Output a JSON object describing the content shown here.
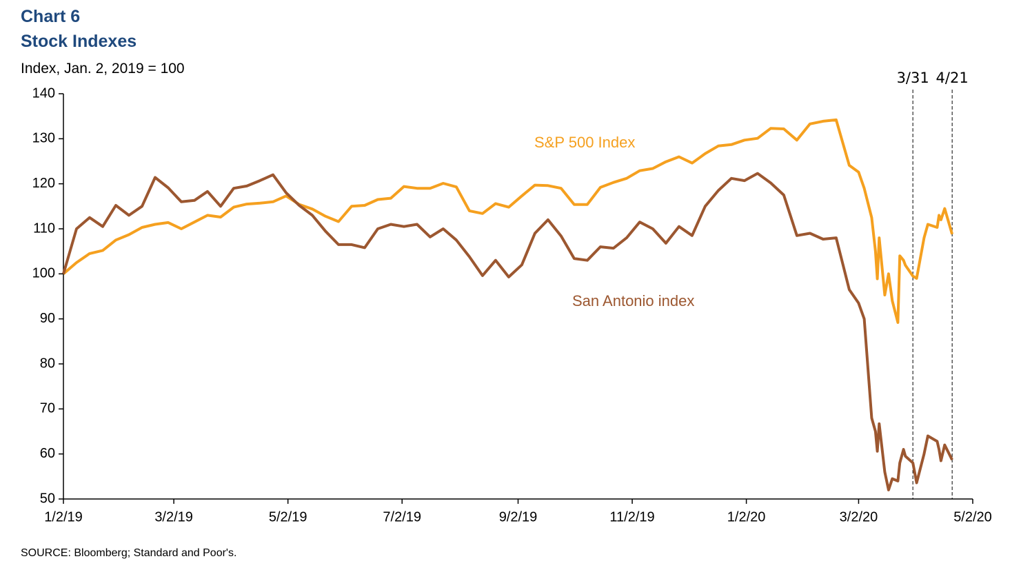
{
  "chart_data": {
    "type": "line",
    "title": "Chart 6",
    "subtitle": "Stock Indexes",
    "y_axis_label": "Index, Jan. 2, 2019 = 100",
    "source": "SOURCE: Bloomberg; Standard and Poor's.",
    "x": [
      "2019-01-02",
      "2019-01-09",
      "2019-01-16",
      "2019-01-23",
      "2019-01-30",
      "2019-02-06",
      "2019-02-13",
      "2019-02-20",
      "2019-02-27",
      "2019-03-06",
      "2019-03-13",
      "2019-03-20",
      "2019-03-27",
      "2019-04-03",
      "2019-04-10",
      "2019-04-17",
      "2019-04-24",
      "2019-05-01",
      "2019-05-08",
      "2019-05-15",
      "2019-05-22",
      "2019-05-29",
      "2019-06-05",
      "2019-06-12",
      "2019-06-19",
      "2019-06-26",
      "2019-07-03",
      "2019-07-10",
      "2019-07-17",
      "2019-07-24",
      "2019-07-31",
      "2019-08-07",
      "2019-08-14",
      "2019-08-21",
      "2019-08-28",
      "2019-09-04",
      "2019-09-11",
      "2019-09-18",
      "2019-09-25",
      "2019-10-02",
      "2019-10-09",
      "2019-10-16",
      "2019-10-23",
      "2019-10-30",
      "2019-11-06",
      "2019-11-13",
      "2019-11-20",
      "2019-11-27",
      "2019-12-04",
      "2019-12-11",
      "2019-12-18",
      "2019-12-25",
      "2020-01-01",
      "2020-01-08",
      "2020-01-15",
      "2020-01-22",
      "2020-01-29",
      "2020-02-05",
      "2020-02-12",
      "2020-02-19",
      "2020-02-26",
      "2020-03-02",
      "2020-03-05",
      "2020-03-09",
      "2020-03-11",
      "2020-03-12",
      "2020-03-13",
      "2020-03-16",
      "2020-03-18",
      "2020-03-20",
      "2020-03-23",
      "2020-03-24",
      "2020-03-26",
      "2020-03-27",
      "2020-03-31",
      "2020-04-02",
      "2020-04-06",
      "2020-04-08",
      "2020-04-13",
      "2020-04-14",
      "2020-04-15",
      "2020-04-17",
      "2020-04-21"
    ],
    "series": [
      {
        "name": "S&P 500 Index",
        "color": "#f5a01f",
        "values": [
          100,
          102.5,
          104.5,
          105.2,
          107.5,
          108.7,
          110.3,
          111,
          111.4,
          110,
          111.5,
          113,
          112.6,
          114.8,
          115.5,
          115.7,
          116,
          117.3,
          115.4,
          114.4,
          112.8,
          111.6,
          115,
          115.2,
          116.5,
          116.8,
          119.4,
          119,
          119,
          120.1,
          119.3,
          114,
          113.4,
          115.6,
          114.8,
          117.3,
          119.7,
          119.6,
          119,
          115.4,
          115.4,
          119.2,
          120.3,
          121.2,
          122.9,
          123.4,
          124.9,
          126,
          124.6,
          126.7,
          128.4,
          128.7,
          129.7,
          130.1,
          132.3,
          132.2,
          129.7,
          133.3,
          133.9,
          134.2,
          124.1,
          122.6,
          119,
          112.5,
          105,
          98.9,
          108,
          95.3,
          100,
          94,
          89.2,
          104,
          103,
          101.9,
          99.5,
          99,
          108,
          111,
          110.3,
          113,
          112,
          114.5,
          108.8
        ]
      },
      {
        "name": "San Antonio index",
        "color": "#9c5730",
        "values": [
          100,
          110,
          112.5,
          110.5,
          115.2,
          113,
          115,
          121.4,
          119.1,
          116,
          116.3,
          118.3,
          115,
          119,
          119.5,
          120.7,
          122,
          118,
          115.2,
          113,
          109.5,
          106.5,
          106.5,
          105.8,
          110,
          111,
          110.5,
          111,
          108.2,
          110,
          107.5,
          103.8,
          99.6,
          103,
          99.3,
          102,
          109,
          112,
          108.4,
          103.4,
          103,
          106,
          105.7,
          108,
          111.5,
          110,
          106.8,
          110.5,
          108.5,
          115,
          118.5,
          121.2,
          120.7,
          122.3,
          120.2,
          117.5,
          108.5,
          109,
          107.7,
          108,
          96.5,
          93.5,
          90,
          68,
          65,
          60.6,
          66.7,
          56,
          52,
          54.5,
          54,
          58,
          61,
          59.5,
          58,
          53.6,
          60,
          64,
          62.8,
          61,
          58.5,
          62,
          58.7
        ]
      }
    ],
    "xlim": [
      "2019-01-02",
      "2020-05-02"
    ],
    "xticks": [
      {
        "value": "2019-01-02",
        "label": "1/2/19"
      },
      {
        "value": "2019-03-02",
        "label": "3/2/19"
      },
      {
        "value": "2019-05-02",
        "label": "5/2/19"
      },
      {
        "value": "2019-07-02",
        "label": "7/2/19"
      },
      {
        "value": "2019-09-02",
        "label": "9/2/19"
      },
      {
        "value": "2019-11-02",
        "label": "11/2/19"
      },
      {
        "value": "2020-01-02",
        "label": "1/2/20"
      },
      {
        "value": "2020-03-02",
        "label": "3/2/20"
      },
      {
        "value": "2020-05-02",
        "label": "5/2/20"
      }
    ],
    "ylim": [
      50,
      140
    ],
    "yticks": [
      50,
      60,
      70,
      80,
      90,
      100,
      110,
      120,
      130,
      140
    ],
    "grid": false,
    "annotations": [
      {
        "x": "2020-03-31",
        "label": "3/31"
      },
      {
        "x": "2020-04-21",
        "label": "4/21"
      }
    ]
  }
}
